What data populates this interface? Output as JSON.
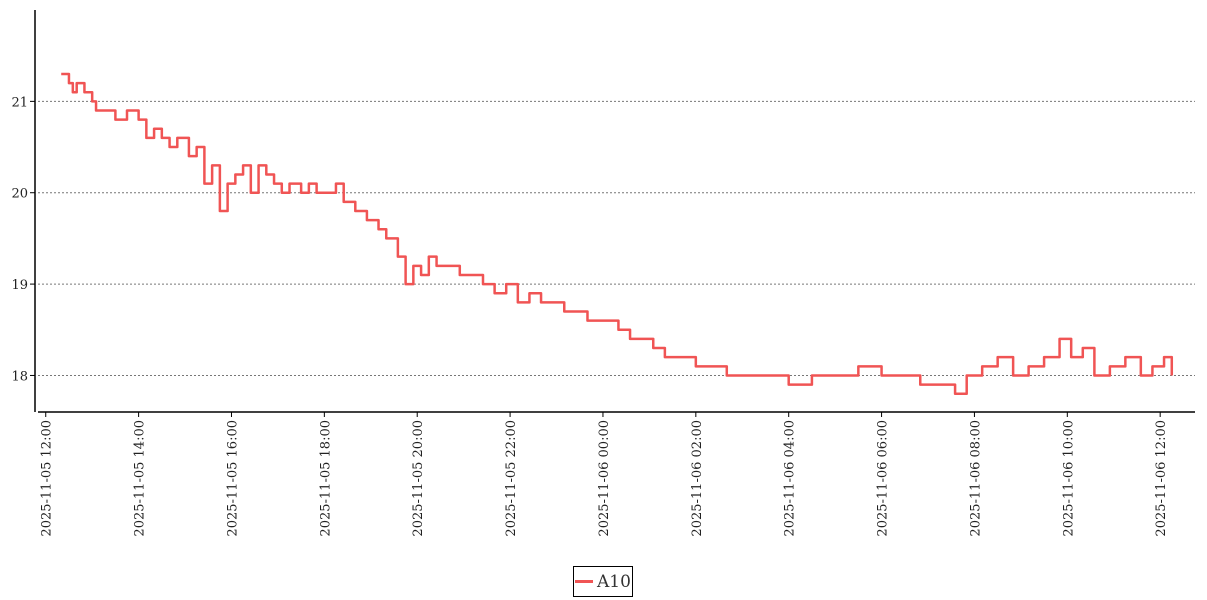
{
  "chart_data": {
    "type": "line",
    "title": "",
    "xlabel": "",
    "ylabel": "",
    "xlim": [
      "2025-11-05 11:50",
      "2025-11-06 12:45"
    ],
    "ylim": [
      17.6,
      22.0
    ],
    "grid": "horizontal dotted",
    "legend_position": "bottom-center",
    "y_ticks": [
      18,
      19,
      20,
      21
    ],
    "y_tick_labels": [
      "18",
      "19",
      "20",
      "21"
    ],
    "x_ticks": [
      "2025-11-05 12:00",
      "2025-11-05 14:00",
      "2025-11-05 16:00",
      "2025-11-05 18:00",
      "2025-11-05 20:00",
      "2025-11-05 22:00",
      "2025-11-06 00:00",
      "2025-11-06 02:00",
      "2025-11-06 04:00",
      "2025-11-06 06:00",
      "2025-11-06 08:00",
      "2025-11-06 10:00",
      "2025-11-06 12:00"
    ],
    "x_tick_labels": [
      "2025-11-05 12:00",
      "2025-11-05 14:00",
      "2025-11-05 16:00",
      "2025-11-05 18:00",
      "2025-11-05 20:00",
      "2025-11-05 22:00",
      "2025-11-06 00:00",
      "2025-11-06 02:00",
      "2025-11-06 04:00",
      "2025-11-06 06:00",
      "2025-11-06 08:00",
      "2025-11-06 10:00",
      "2025-11-06 12:00"
    ],
    "series": [
      {
        "name": "A10",
        "color": "#f05454",
        "points": [
          [
            "2025-11-05 12:20",
            21.3
          ],
          [
            "2025-11-05 12:30",
            21.2
          ],
          [
            "2025-11-05 12:35",
            21.1
          ],
          [
            "2025-11-05 12:40",
            21.2
          ],
          [
            "2025-11-05 12:50",
            21.1
          ],
          [
            "2025-11-05 13:00",
            21.0
          ],
          [
            "2025-11-05 13:05",
            20.9
          ],
          [
            "2025-11-05 13:15",
            20.9
          ],
          [
            "2025-11-05 13:30",
            20.8
          ],
          [
            "2025-11-05 13:45",
            20.9
          ],
          [
            "2025-11-05 14:00",
            20.8
          ],
          [
            "2025-11-05 14:10",
            20.6
          ],
          [
            "2025-11-05 14:20",
            20.7
          ],
          [
            "2025-11-05 14:30",
            20.6
          ],
          [
            "2025-11-05 14:40",
            20.5
          ],
          [
            "2025-11-05 14:50",
            20.6
          ],
          [
            "2025-11-05 15:05",
            20.4
          ],
          [
            "2025-11-05 15:15",
            20.5
          ],
          [
            "2025-11-05 15:25",
            20.1
          ],
          [
            "2025-11-05 15:35",
            20.3
          ],
          [
            "2025-11-05 15:45",
            19.8
          ],
          [
            "2025-11-05 15:55",
            20.1
          ],
          [
            "2025-11-05 16:05",
            20.2
          ],
          [
            "2025-11-05 16:15",
            20.3
          ],
          [
            "2025-11-05 16:25",
            20.0
          ],
          [
            "2025-11-05 16:35",
            20.3
          ],
          [
            "2025-11-05 16:45",
            20.2
          ],
          [
            "2025-11-05 16:55",
            20.1
          ],
          [
            "2025-11-05 17:05",
            20.0
          ],
          [
            "2025-11-05 17:15",
            20.1
          ],
          [
            "2025-11-05 17:30",
            20.0
          ],
          [
            "2025-11-05 17:40",
            20.1
          ],
          [
            "2025-11-05 17:50",
            20.0
          ],
          [
            "2025-11-05 18:05",
            20.0
          ],
          [
            "2025-11-05 18:15",
            20.1
          ],
          [
            "2025-11-05 18:25",
            19.9
          ],
          [
            "2025-11-05 18:40",
            19.8
          ],
          [
            "2025-11-05 18:55",
            19.7
          ],
          [
            "2025-11-05 19:10",
            19.6
          ],
          [
            "2025-11-05 19:20",
            19.5
          ],
          [
            "2025-11-05 19:35",
            19.3
          ],
          [
            "2025-11-05 19:45",
            19.0
          ],
          [
            "2025-11-05 19:55",
            19.2
          ],
          [
            "2025-11-05 20:05",
            19.1
          ],
          [
            "2025-11-05 20:15",
            19.3
          ],
          [
            "2025-11-05 20:25",
            19.2
          ],
          [
            "2025-11-05 20:40",
            19.2
          ],
          [
            "2025-11-05 20:55",
            19.1
          ],
          [
            "2025-11-05 21:10",
            19.1
          ],
          [
            "2025-11-05 21:25",
            19.0
          ],
          [
            "2025-11-05 21:40",
            18.9
          ],
          [
            "2025-11-05 21:55",
            19.0
          ],
          [
            "2025-11-05 22:10",
            18.8
          ],
          [
            "2025-11-05 22:25",
            18.9
          ],
          [
            "2025-11-05 22:40",
            18.8
          ],
          [
            "2025-11-05 22:55",
            18.8
          ],
          [
            "2025-11-05 23:10",
            18.7
          ],
          [
            "2025-11-05 23:25",
            18.7
          ],
          [
            "2025-11-05 23:40",
            18.6
          ],
          [
            "2025-11-06 00:00",
            18.6
          ],
          [
            "2025-11-06 00:20",
            18.5
          ],
          [
            "2025-11-06 00:35",
            18.4
          ],
          [
            "2025-11-06 00:50",
            18.4
          ],
          [
            "2025-11-06 01:05",
            18.3
          ],
          [
            "2025-11-06 01:20",
            18.2
          ],
          [
            "2025-11-06 01:40",
            18.2
          ],
          [
            "2025-11-06 02:00",
            18.1
          ],
          [
            "2025-11-06 02:20",
            18.1
          ],
          [
            "2025-11-06 02:40",
            18.0
          ],
          [
            "2025-11-06 03:00",
            18.0
          ],
          [
            "2025-11-06 03:30",
            18.0
          ],
          [
            "2025-11-06 04:00",
            17.9
          ],
          [
            "2025-11-06 04:30",
            18.0
          ],
          [
            "2025-11-06 05:00",
            18.0
          ],
          [
            "2025-11-06 05:30",
            18.1
          ],
          [
            "2025-11-06 06:00",
            18.0
          ],
          [
            "2025-11-06 06:30",
            18.0
          ],
          [
            "2025-11-06 06:50",
            17.9
          ],
          [
            "2025-11-06 07:15",
            17.9
          ],
          [
            "2025-11-06 07:35",
            17.8
          ],
          [
            "2025-11-06 07:50",
            18.0
          ],
          [
            "2025-11-06 08:10",
            18.1
          ],
          [
            "2025-11-06 08:30",
            18.2
          ],
          [
            "2025-11-06 08:50",
            18.0
          ],
          [
            "2025-11-06 09:10",
            18.1
          ],
          [
            "2025-11-06 09:30",
            18.2
          ],
          [
            "2025-11-06 09:50",
            18.4
          ],
          [
            "2025-11-06 10:05",
            18.2
          ],
          [
            "2025-11-06 10:20",
            18.3
          ],
          [
            "2025-11-06 10:35",
            18.0
          ],
          [
            "2025-11-06 10:55",
            18.1
          ],
          [
            "2025-11-06 11:15",
            18.2
          ],
          [
            "2025-11-06 11:35",
            18.0
          ],
          [
            "2025-11-06 11:50",
            18.1
          ],
          [
            "2025-11-06 12:05",
            18.2
          ],
          [
            "2025-11-06 12:15",
            18.0
          ]
        ]
      }
    ]
  }
}
